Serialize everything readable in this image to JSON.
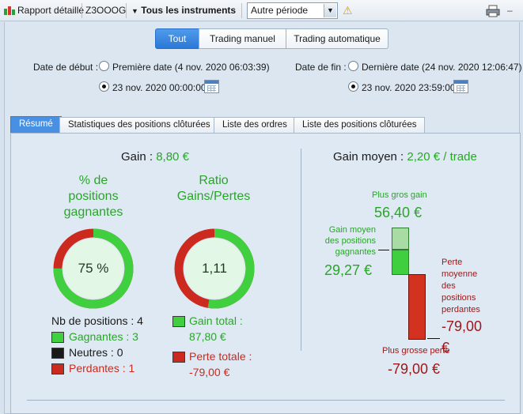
{
  "toolbar": {
    "report_label": "Rapport détaillé",
    "account_label": "Z3OOOG",
    "instruments_label": "Tous les instruments",
    "period_value": "Autre période",
    "warning_symbol": "⚠"
  },
  "mode_toggle": {
    "all": "Tout",
    "manual": "Trading manuel",
    "auto": "Trading automatique",
    "active": "all"
  },
  "dates": {
    "start_label": "Date de début :",
    "start_first_option": "Première date (4 nov. 2020 06:03:39)",
    "start_custom_value": "23 nov. 2020 00:00:00",
    "end_label": "Date de fin :",
    "end_last_option": "Dernière date (24 nov. 2020 12:06:47)",
    "end_custom_value": "23 nov. 2020 23:59:00"
  },
  "tabs": [
    "Résumé",
    "Statistiques des positions clôturées",
    "Liste des ordres",
    "Liste des positions clôturées"
  ],
  "summary": {
    "gain_label": "Gain :",
    "gain_value": "8,80 €",
    "win_pct_title_1": "% de",
    "win_pct_title_2": "positions",
    "win_pct_title_3": "gagnantes",
    "win_pct_value": "75 %",
    "win_fraction": 0.75,
    "ratio_title_1": "Ratio",
    "ratio_title_2": "Gains/Pertes",
    "ratio_value": "1,11",
    "gain_share": 0.526,
    "positions_label": "Nb de positions : 4",
    "winners_label": "Gagnantes : 3",
    "neutral_label": "Neutres : 0",
    "losers_label": "Perdantes : 1",
    "total_gain_label": "Gain total :",
    "total_gain_value": "87,80 €",
    "total_loss_label": "Perte totale :",
    "total_loss_value": "-79,00 €",
    "avg_gain_label": "Gain moyen :",
    "avg_gain_value": "2,20 € / trade",
    "biggest_gain_label": "Plus gros gain",
    "biggest_gain_value": "56,40 €",
    "avg_winning_label_1": "Gain moyen",
    "avg_winning_label_2": "des positions",
    "avg_winning_label_3": "gagnantes",
    "avg_winning_value": "29,27 €",
    "avg_losing_label_1": "Perte",
    "avg_losing_label_2": "moyenne",
    "avg_losing_label_3": "des",
    "avg_losing_label_4": "positions",
    "avg_losing_label_5": "perdantes",
    "avg_losing_value": "-79,00",
    "avg_losing_unit": "€",
    "biggest_loss_label": "Plus grosse perte",
    "biggest_loss_value": "-79,00 €"
  },
  "colors": {
    "gain_green": "#2aa52a",
    "loss_red": "#cc2a1e",
    "accent_blue": "#2b78d8"
  }
}
